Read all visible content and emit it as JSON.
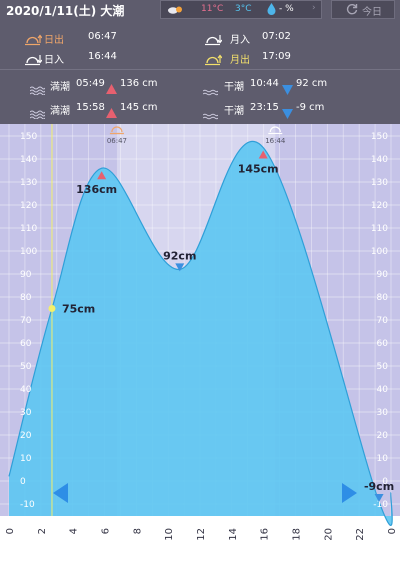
{
  "header": {
    "date_location": "2020/1/11(土) 大潮",
    "weather": {
      "high": "11°C",
      "low": "3°C",
      "rain": "- %"
    },
    "today_button": "今日",
    "sunrise_label": "日出",
    "sunrise_time": "06:47",
    "sunset_label": "日入",
    "sunset_time": "16:44",
    "moonrise_label": "月入",
    "moonrise_time": "07:02",
    "moonset_label": "月出",
    "moonset_time": "17:09",
    "high_tides": [
      {
        "label": "満潮",
        "time": "05:49",
        "height": "136 cm"
      },
      {
        "label": "満潮",
        "time": "15:58",
        "height": "145 cm"
      }
    ],
    "low_tides": [
      {
        "label": "干潮",
        "time": "10:44",
        "height": "92 cm"
      },
      {
        "label": "干潮",
        "time": "23:15",
        "height": "-9 cm"
      }
    ]
  },
  "colors": {
    "header_bg": "#5e5c6d",
    "chart_bg": "#c5c3e8",
    "tide_fill": "#5cc6f2",
    "high_marker": "#e7606f",
    "low_marker": "#3b8fe0",
    "sun_icon": "#f0a66a",
    "moon_icon": "#f3e06c",
    "current_line": "#f3f06a"
  },
  "chart_data": {
    "type": "area",
    "x_ticks": [
      "0",
      "2",
      "4",
      "6",
      "8",
      "10",
      "12",
      "14",
      "16",
      "18",
      "20",
      "22",
      "0"
    ],
    "y_ticks": [
      "-10",
      "0",
      "10",
      "20",
      "30",
      "40",
      "50",
      "60",
      "70",
      "80",
      "90",
      "100",
      "110",
      "120",
      "130",
      "140",
      "150"
    ],
    "xlim": [
      0,
      24
    ],
    "ylim": [
      -10,
      150
    ],
    "points": [
      {
        "x": 0,
        "y": 2
      },
      {
        "x": 2.7,
        "y": 75
      },
      {
        "x": 5.82,
        "y": 136
      },
      {
        "x": 10.73,
        "y": 92
      },
      {
        "x": 15.97,
        "y": 145
      },
      {
        "x": 23.25,
        "y": -9
      },
      {
        "x": 24,
        "y": -5
      }
    ],
    "extremes": [
      {
        "x": 5.82,
        "y": 136,
        "type": "high",
        "label": "136cm"
      },
      {
        "x": 10.73,
        "y": 92,
        "type": "low",
        "label": "92cm"
      },
      {
        "x": 15.97,
        "y": 145,
        "type": "high",
        "label": "145cm"
      },
      {
        "x": 23.25,
        "y": -9,
        "type": "low",
        "label": "-9cm"
      }
    ],
    "current": {
      "x": 2.7,
      "y": 75,
      "label": "75cm"
    },
    "sunrise": {
      "x": 6.78,
      "label": "06:47"
    },
    "sunset": {
      "x": 16.73,
      "label": "16:44"
    },
    "grid": true
  }
}
